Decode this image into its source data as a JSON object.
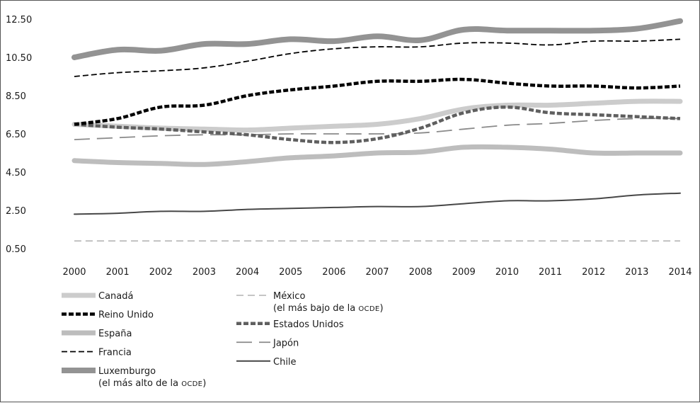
{
  "chart_data": {
    "type": "line",
    "title": "",
    "xlabel": "",
    "ylabel": "",
    "x": [
      "2000",
      "2001",
      "2002",
      "2003",
      "2004",
      "2005",
      "2006",
      "2007",
      "2008",
      "2009",
      "2010",
      "2011",
      "2012",
      "2013",
      "2014"
    ],
    "ylim": [
      0.5,
      12.5
    ],
    "yticks": [
      "0.50",
      "2.50",
      "4.50",
      "6.50",
      "8.50",
      "10.50",
      "12.50"
    ],
    "grid": false,
    "legend_position": "bottom",
    "series": [
      {
        "name": "Canadá",
        "legend_suffix": "",
        "color": "#cccccc",
        "style": "solid-thick",
        "values": [
          7.0,
          6.9,
          6.8,
          6.75,
          6.7,
          6.8,
          6.9,
          7.0,
          7.3,
          7.8,
          8.0,
          8.0,
          8.1,
          8.2,
          8.2
        ]
      },
      {
        "name": "Reino Unido",
        "legend_suffix": "",
        "color": "#000000",
        "style": "dashed-thick",
        "values": [
          7.0,
          7.3,
          7.9,
          8.0,
          8.5,
          8.8,
          9.0,
          9.25,
          9.25,
          9.35,
          9.15,
          9.0,
          9.0,
          8.9,
          9.0
        ]
      },
      {
        "name": "España",
        "legend_suffix": "",
        "color": "#bdbdbd",
        "style": "solid-thick",
        "values": [
          5.1,
          5.0,
          4.95,
          4.9,
          5.05,
          5.25,
          5.35,
          5.5,
          5.55,
          5.8,
          5.8,
          5.7,
          5.5,
          5.5,
          5.5
        ]
      },
      {
        "name": "Francia",
        "legend_suffix": "",
        "color": "#000000",
        "style": "dashed-thin",
        "values": [
          9.5,
          9.7,
          9.8,
          9.95,
          10.3,
          10.7,
          10.95,
          11.05,
          11.05,
          11.25,
          11.25,
          11.15,
          11.35,
          11.35,
          11.45
        ]
      },
      {
        "name": "Luxemburgo",
        "legend_suffix": "(el más alto de la ",
        "legend_suffix_sc": "OCDE",
        "legend_suffix_end": ")",
        "color": "#939393",
        "style": "solid-xthick",
        "values": [
          10.5,
          10.9,
          10.85,
          11.2,
          11.2,
          11.45,
          11.35,
          11.6,
          11.4,
          11.95,
          11.9,
          11.9,
          11.9,
          12.0,
          12.4
        ]
      },
      {
        "name": "México",
        "legend_suffix": "(el más bajo de la ",
        "legend_suffix_sc": "OCDE",
        "legend_suffix_end": ")",
        "color": "#bdbdbd",
        "style": "dashed-light",
        "values": [
          0.9,
          0.9,
          0.9,
          0.9,
          0.9,
          0.9,
          0.9,
          0.9,
          0.9,
          0.9,
          0.9,
          0.9,
          0.9,
          0.9,
          0.9
        ]
      },
      {
        "name": "Estados Unidos",
        "legend_suffix": "",
        "color": "#5f5f5f",
        "style": "dashed-thick",
        "values": [
          7.0,
          6.85,
          6.75,
          6.6,
          6.45,
          6.2,
          6.05,
          6.25,
          6.8,
          7.6,
          7.9,
          7.6,
          7.5,
          7.4,
          7.3
        ]
      },
      {
        "name": "Japón",
        "legend_suffix": "",
        "color": "#8a8a8a",
        "style": "longdash",
        "values": [
          6.2,
          6.3,
          6.4,
          6.45,
          6.45,
          6.5,
          6.5,
          6.5,
          6.55,
          6.75,
          6.95,
          7.05,
          7.2,
          7.3,
          7.3
        ]
      },
      {
        "name": "Chile",
        "legend_suffix": "",
        "color": "#474747",
        "style": "solid-thin",
        "values": [
          2.3,
          2.35,
          2.45,
          2.45,
          2.55,
          2.6,
          2.65,
          2.7,
          2.7,
          2.85,
          3.0,
          3.0,
          3.1,
          3.3,
          3.4
        ]
      }
    ]
  }
}
